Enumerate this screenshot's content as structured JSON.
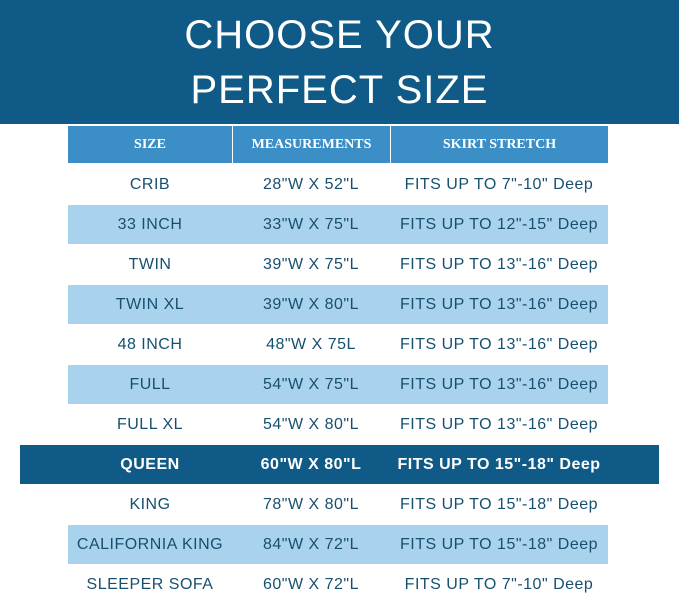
{
  "header": {
    "title": [
      "CHOOSE YOUR",
      "PERFECT SIZE"
    ]
  },
  "table": {
    "columns": [
      "SIZE",
      "MEASUREMENTS",
      "SKIRT STRETCH"
    ],
    "rows": [
      [
        "CRIB",
        "28\"W X 52\"L",
        "FITS UP TO 7\"-10\" Deep"
      ],
      [
        "33 INCH",
        "33\"W X 75\"L",
        "FITS UP TO 12\"-15\" Deep"
      ],
      [
        "TWIN",
        "39\"W X 75\"L",
        "FITS UP TO 13\"-16\" Deep"
      ],
      [
        "TWIN XL",
        "39\"W X 80\"L",
        "FITS UP TO 13\"-16\" Deep"
      ],
      [
        "48 INCH",
        "48\"W X 75L",
        "FITS UP TO 13\"-16\" Deep"
      ],
      [
        "FULL",
        "54\"W X 75\"L",
        "FITS UP TO 13\"-16\" Deep"
      ],
      [
        "FULL XL",
        "54\"W X 80\"L",
        "FITS UP TO 13\"-16\" Deep"
      ],
      [
        "QUEEN",
        "60\"W X 80\"L",
        "FITS UP TO 15\"-18\" Deep"
      ],
      [
        "KING",
        "78\"W X 80\"L",
        "FITS UP TO 15\"-18\" Deep"
      ],
      [
        "CALIFORNIA KING",
        "84\"W X 72\"L",
        "FITS UP TO 15\"-18\" Deep"
      ],
      [
        "SLEEPER SOFA",
        "60\"W X 72\"L",
        "FITS UP TO 7\"-10\" Deep"
      ]
    ]
  }
}
